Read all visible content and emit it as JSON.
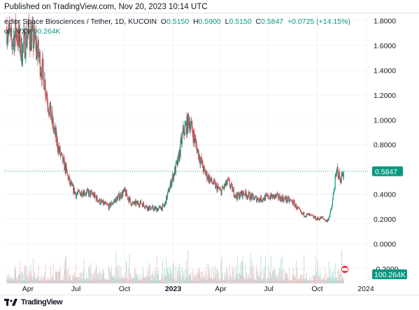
{
  "header": {
    "published": "Published on TradingView.com, Nov 20, 2023 10:14 UTC",
    "symbol": "ector Space Biosciences / Tether, 1D, KUCOIN",
    "open_label": "O",
    "open": "0.5150",
    "high_label": "H",
    "high": "0.5900",
    "low_label": "L",
    "low": "0.5150",
    "close_label": "C",
    "close": "0.5847",
    "change": "+0.0725 (+14.15%)",
    "vol_label": "ol · VXV",
    "vol_value": "00.264K"
  },
  "footer": {
    "brand": "TradingView",
    "logo": "tradingview-logo-icon"
  },
  "colors": {
    "up": "#089981",
    "down": "#f23645",
    "up_vol": "#b3dfd8",
    "down_vol": "#f7c3c7",
    "price_line": "#089981"
  },
  "chart_data": {
    "type": "candlestick",
    "symbol": "ector Space Biosciences / Tether",
    "x_axis_labels": [
      "Apr",
      "Jul",
      "Oct",
      "2023",
      "Apr",
      "Jul",
      "Oct",
      "2024"
    ],
    "y_axis_labels": [
      "1.8000",
      "1.6000",
      "1.4000",
      "1.2000",
      "1.0000",
      "0.8000",
      "0.6000",
      "0.4000",
      "0.2000",
      "0.0000",
      "-0.2000"
    ],
    "ylim": [
      -0.32,
      1.86
    ],
    "xlim": [
      "2022-02-15",
      "2024-01-05"
    ],
    "last_price_label": "0.5847",
    "volume_label": "100.264K",
    "grid": true,
    "series": [
      {
        "name": "price",
        "x": [
          "2022-02-20",
          "2022-03-01",
          "2022-03-10",
          "2022-03-20",
          "2022-04-01",
          "2022-04-15",
          "2022-05-01",
          "2022-05-10",
          "2022-05-20",
          "2022-06-01",
          "2022-06-10",
          "2022-06-20",
          "2022-07-01",
          "2022-07-15",
          "2022-08-01",
          "2022-08-15",
          "2022-09-01",
          "2022-09-15",
          "2022-10-01",
          "2022-10-15",
          "2022-11-01",
          "2022-11-15",
          "2022-12-01",
          "2022-12-15",
          "2022-12-25",
          "2023-01-01",
          "2023-01-10",
          "2023-01-20",
          "2023-02-01",
          "2023-02-10",
          "2023-02-20",
          "2023-03-01",
          "2023-03-15",
          "2023-04-01",
          "2023-04-15",
          "2023-05-01",
          "2023-05-15",
          "2023-06-01",
          "2023-06-15",
          "2023-07-01",
          "2023-07-15",
          "2023-08-01",
          "2023-08-15",
          "2023-09-01",
          "2023-09-15",
          "2023-10-01",
          "2023-10-10",
          "2023-10-20",
          "2023-10-28",
          "2023-11-03",
          "2023-11-08",
          "2023-11-13",
          "2023-11-20"
        ],
        "close": [
          1.75,
          1.62,
          1.72,
          1.55,
          1.7,
          1.62,
          1.35,
          1.12,
          0.92,
          0.72,
          0.62,
          0.48,
          0.4,
          0.42,
          0.4,
          0.34,
          0.3,
          0.36,
          0.42,
          0.32,
          0.33,
          0.29,
          0.28,
          0.3,
          0.45,
          0.55,
          0.66,
          0.9,
          1.0,
          0.85,
          0.7,
          0.58,
          0.5,
          0.42,
          0.5,
          0.38,
          0.41,
          0.37,
          0.36,
          0.38,
          0.38,
          0.36,
          0.34,
          0.24,
          0.23,
          0.2,
          0.21,
          0.18,
          0.28,
          0.48,
          0.6,
          0.51,
          0.5847
        ]
      }
    ]
  }
}
